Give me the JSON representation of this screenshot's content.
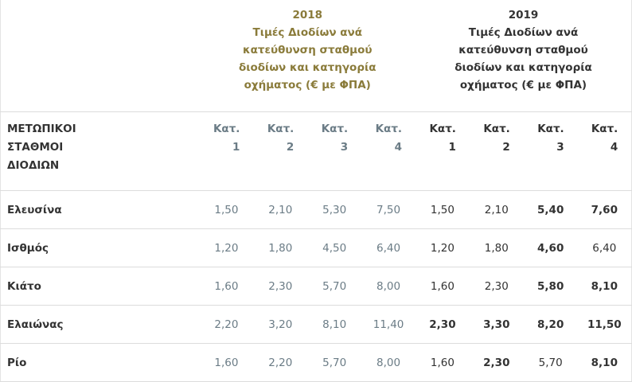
{
  "table": {
    "header": {
      "corner": "",
      "groups": [
        {
          "year": "2018",
          "title": "Τιμές Διοδίων ανά κατεύθυνση σταθμού διοδίων και κατηγορία οχήματος (€ με ΦΠΑ)"
        },
        {
          "year": "2019",
          "title": "Τιμές Διοδίων ανά κατεύθυνση σταθμού διοδίων και κατηγορία οχήματος (€ με ΦΠΑ)"
        }
      ],
      "row_header": "ΜΕΤΩΠΙΚΟΙ ΣΤΑΘΜΟΙ ΔΙΟΔΙΩΝ",
      "columns": [
        "Κατ. 1",
        "Κατ. 2",
        "Κατ. 3",
        "Κατ. 4",
        "Κατ. 1",
        "Κατ. 2",
        "Κατ. 3",
        "Κατ. 4"
      ]
    },
    "rows": [
      {
        "station": "Ελευσίνα",
        "cells": [
          "1,50",
          "2,10",
          "5,30",
          "7,50",
          "1,50",
          "2,10",
          "5,40",
          "7,60"
        ],
        "bold": [
          6,
          7
        ]
      },
      {
        "station": "Ισθμός",
        "cells": [
          "1,20",
          "1,80",
          "4,50",
          "6,40",
          "1,20",
          "1,80",
          "4,60",
          "6,40"
        ],
        "bold": [
          6
        ]
      },
      {
        "station": "Κιάτο",
        "cells": [
          "1,60",
          "2,30",
          "5,70",
          "8,00",
          "1,60",
          "2,30",
          "5,80",
          "8,10"
        ],
        "bold": [
          6,
          7
        ]
      },
      {
        "station": "Ελαιώνας",
        "cells": [
          "2,20",
          "3,20",
          "8,10",
          "11,40",
          "2,30",
          "3,30",
          "8,20",
          "11,50"
        ],
        "bold": [
          4,
          5,
          6,
          7
        ]
      },
      {
        "station": "Ρίο",
        "cells": [
          "1,60",
          "2,20",
          "5,70",
          "8,00",
          "1,60",
          "2,30",
          "5,70",
          "8,10"
        ],
        "bold": [
          5,
          7
        ]
      }
    ]
  }
}
